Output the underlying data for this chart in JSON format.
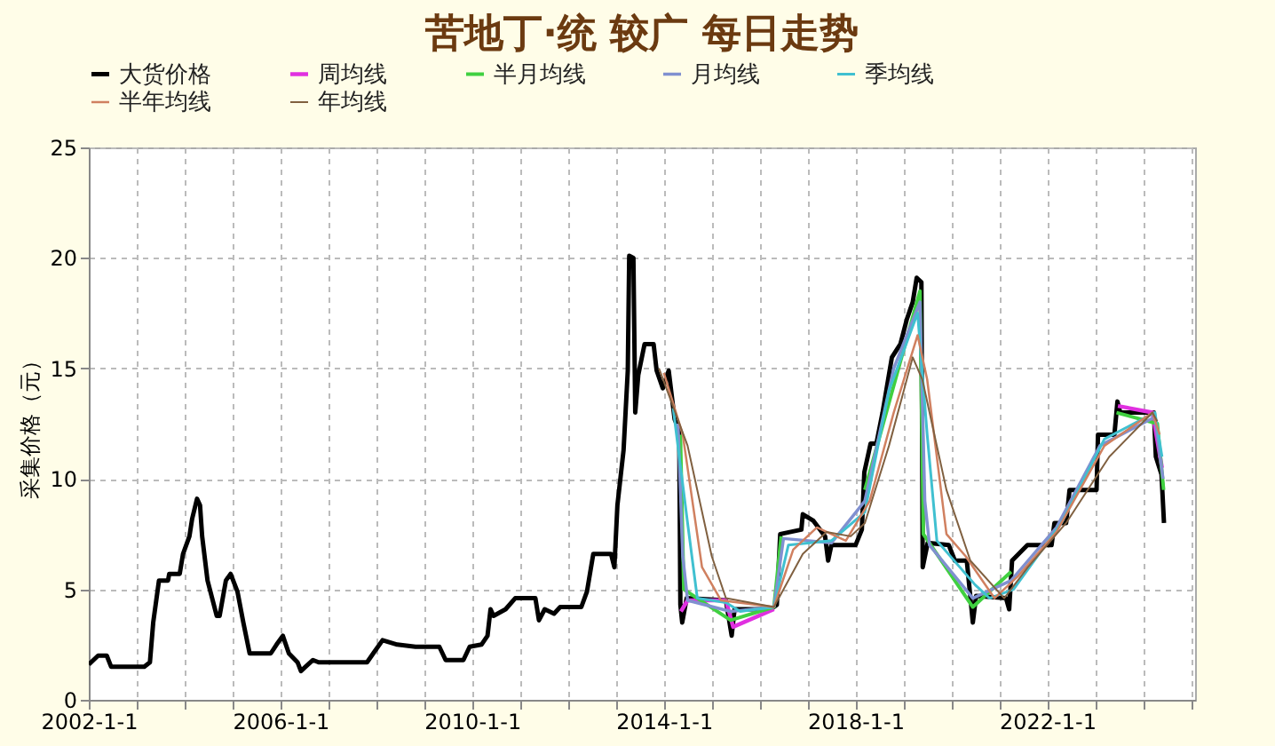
{
  "chart_data": {
    "type": "line",
    "title": "苦地丁·统 较广 每日走势",
    "ylabel": "采集价格（元）",
    "xlim": [
      "2002-01-01",
      "2025-02-01"
    ],
    "ylim": [
      0,
      25
    ],
    "yticks": [
      0,
      5,
      10,
      15,
      20,
      25
    ],
    "xticks": [
      {
        "value": "2002-01-01",
        "label": "2002-1-1"
      },
      {
        "value": "2003-01-01",
        "label": null
      },
      {
        "value": "2004-01-01",
        "label": null
      },
      {
        "value": "2005-01-01",
        "label": null
      },
      {
        "value": "2006-01-01",
        "label": "2006-1-1"
      },
      {
        "value": "2007-01-01",
        "label": null
      },
      {
        "value": "2008-01-01",
        "label": null
      },
      {
        "value": "2009-01-01",
        "label": null
      },
      {
        "value": "2010-01-01",
        "label": "2010-1-1"
      },
      {
        "value": "2011-01-01",
        "label": null
      },
      {
        "value": "2012-01-01",
        "label": null
      },
      {
        "value": "2013-01-01",
        "label": null
      },
      {
        "value": "2014-01-01",
        "label": "2014-1-1"
      },
      {
        "value": "2015-01-01",
        "label": null
      },
      {
        "value": "2016-01-01",
        "label": null
      },
      {
        "value": "2017-01-01",
        "label": null
      },
      {
        "value": "2018-01-01",
        "label": "2018-1-1"
      },
      {
        "value": "2019-01-01",
        "label": null
      },
      {
        "value": "2020-01-01",
        "label": null
      },
      {
        "value": "2021-01-01",
        "label": null
      },
      {
        "value": "2022-01-01",
        "label": "2022-1-1"
      },
      {
        "value": "2023-01-01",
        "label": null
      },
      {
        "value": "2024-01-01",
        "label": null
      },
      {
        "value": "2025-01-01",
        "label": null
      }
    ],
    "grid": true,
    "legend": "top",
    "line_style": "solid",
    "marker": "none",
    "series": [
      {
        "name": "大货价格",
        "color": "#000000",
        "x": [
          "2002-01-01",
          "2002-03-13",
          "2002-05-18",
          "2002-06-20",
          "2003-02-28",
          "2003-04-12",
          "2003-05-07",
          "2003-06-20",
          "2003-08-28",
          "2003-09-06",
          "2003-11-25",
          "2003-12-20",
          "2004-02-07",
          "2004-02-28",
          "2004-04-05",
          "2004-04-28",
          "2004-05-14",
          "2004-06-24",
          "2004-09-02",
          "2004-09-24",
          "2004-11-11",
          "2004-12-17",
          "2005-02-07",
          "2005-03-24",
          "2005-05-11",
          "2005-10-19",
          "2005-12-02",
          "2006-01-19",
          "2006-03-06",
          "2006-05-11",
          "2006-06-06",
          "2006-07-12",
          "2006-09-06",
          "2006-10-19",
          "2007-10-23",
          "2007-12-09",
          "2008-02-18",
          "2008-06-09",
          "2008-10-26",
          "2009-04-26",
          "2009-06-13",
          "2009-10-26",
          "2009-12-13",
          "2010-03-13",
          "2010-04-28",
          "2010-05-21",
          "2010-06-13",
          "2010-09-13",
          "2010-11-25",
          "2011-04-28",
          "2011-05-25",
          "2011-07-08",
          "2011-09-17",
          "2011-11-03",
          "2012-04-12",
          "2012-05-25",
          "2012-07-12",
          "2012-11-25",
          "2012-12-20",
          "2013-01-12",
          "2013-02-28",
          "2013-04-01",
          "2013-04-12",
          "2013-05-14",
          "2013-05-28",
          "2013-06-20",
          "2013-08-07",
          "2013-10-15",
          "2013-11-07",
          "2013-12-24",
          "2014-02-07",
          "2014-03-24",
          "2014-04-28",
          "2014-05-07",
          "2014-05-21",
          "2014-06-24",
          "2015-04-19",
          "2015-06-02",
          "2015-06-24",
          "2016-03-27",
          "2016-05-11",
          "2016-06-06",
          "2016-11-14",
          "2016-11-25",
          "2017-02-14",
          "2017-05-14",
          "2017-06-06",
          "2017-07-01",
          "2018-01-01",
          "2018-02-18",
          "2018-03-09",
          "2018-04-26",
          "2018-06-09",
          "2018-07-26",
          "2018-10-05",
          "2018-12-09",
          "2019-01-26",
          "2019-03-13",
          "2019-04-12",
          "2019-05-18",
          "2019-05-28",
          "2019-07-05",
          "2019-12-13",
          "2020-01-28",
          "2020-04-28",
          "2020-05-21",
          "2020-06-13",
          "2020-07-08",
          "2021-02-21",
          "2021-03-17",
          "2021-04-08",
          "2021-08-03",
          "2022-02-03",
          "2022-02-25",
          "2022-05-25",
          "2022-06-20",
          "2023-01-12",
          "2023-01-23",
          "2023-05-28",
          "2023-06-20",
          "2023-07-12",
          "2024-03-24",
          "2024-04-08",
          "2024-05-21",
          "2024-06-09"
        ],
        "values": [
          1.6,
          2.0,
          2.0,
          1.5,
          1.5,
          1.7,
          3.5,
          5.4,
          5.4,
          5.7,
          5.7,
          6.6,
          7.4,
          8.2,
          9.1,
          8.8,
          7.4,
          5.4,
          3.8,
          3.8,
          5.4,
          5.7,
          4.9,
          3.5,
          2.1,
          2.1,
          2.5,
          2.9,
          2.1,
          1.7,
          1.3,
          1.5,
          1.8,
          1.7,
          1.7,
          2.1,
          2.7,
          2.5,
          2.4,
          2.4,
          1.8,
          1.8,
          2.4,
          2.5,
          2.9,
          4.1,
          3.8,
          4.1,
          4.6,
          4.6,
          3.6,
          4.1,
          3.9,
          4.2,
          4.2,
          4.9,
          6.6,
          6.6,
          6.0,
          8.8,
          11.3,
          14.9,
          20.1,
          20.0,
          13.0,
          14.7,
          16.1,
          16.1,
          14.9,
          14.1,
          14.9,
          12.7,
          12.2,
          4.3,
          3.5,
          4.6,
          4.5,
          2.9,
          4.1,
          4.1,
          4.3,
          7.5,
          7.7,
          8.4,
          8.1,
          7.4,
          6.3,
          7.0,
          7.0,
          7.7,
          10.3,
          11.6,
          11.6,
          13.0,
          15.5,
          16.1,
          17.2,
          18.0,
          19.1,
          18.9,
          6.0,
          7.1,
          7.0,
          6.3,
          6.3,
          4.9,
          3.5,
          4.7,
          4.6,
          4.1,
          6.3,
          7.0,
          7.0,
          8.0,
          8.0,
          9.5,
          9.5,
          12.0,
          12.0,
          13.5,
          13.0,
          13.0,
          11.0,
          10.2,
          8.0
        ]
      },
      {
        "name": "周均线",
        "color": "#e030e0",
        "x": [
          "2014-05-11",
          "2014-07-01",
          "2015-04-19",
          "2015-06-13",
          "2016-04-19",
          "2019-01-01",
          "2023-06-24",
          "2024-03-13",
          "2024-05-25"
        ],
        "values": [
          4.0,
          4.5,
          4.5,
          3.3,
          4.1,
          null,
          13.3,
          13.0,
          10.5
        ]
      },
      {
        "name": "半月均线",
        "color": "#40d040",
        "x": [
          "2014-05-07",
          "2014-06-02",
          "2015-05-25",
          "2016-04-19",
          "2016-06-13",
          "2017-06-01",
          "2018-03-13",
          "2019-05-07",
          "2019-06-02",
          "2020-06-13",
          "2021-04-01",
          "2022-06-01",
          "2023-06-13",
          "2024-04-19",
          "2024-06-06"
        ],
        "values": [
          12.0,
          5.0,
          3.6,
          4.2,
          7.4,
          null,
          9.5,
          18.5,
          7.5,
          4.2,
          5.8,
          null,
          13.0,
          12.5,
          9.5
        ]
      },
      {
        "name": "月均线",
        "color": "#8090d0",
        "x": [
          "2014-04-19",
          "2014-05-25",
          "2014-07-01",
          "2015-05-25",
          "2016-04-19",
          "2016-07-01",
          "2017-07-01",
          "2018-03-13",
          "2018-10-19",
          "2019-05-07",
          "2019-06-13",
          "2019-07-19",
          "2020-06-13",
          "2021-04-01",
          "2022-03-13",
          "2023-02-07",
          "2024-04-01",
          "2024-06-02"
        ],
        "values": [
          12.5,
          6.5,
          4.5,
          4.0,
          4.2,
          7.3,
          7.1,
          9.0,
          15.0,
          18.0,
          9.0,
          7.0,
          4.6,
          5.4,
          7.8,
          11.5,
          12.8,
          10.0
        ]
      },
      {
        "name": "季均线",
        "color": "#40c0d0",
        "x": [
          "2014-03-13",
          "2014-07-01",
          "2014-09-13",
          "2015-04-19",
          "2015-08-07",
          "2016-04-19",
          "2016-08-07",
          "2017-07-01",
          "2018-03-13",
          "2018-09-13",
          "2019-04-19",
          "2019-07-01",
          "2019-09-13",
          "2020-07-01",
          "2020-10-19",
          "2021-04-19",
          "2022-04-19",
          "2023-03-13",
          "2024-04-01",
          "2024-05-25"
        ],
        "values": [
          13.2,
          8.0,
          4.6,
          4.4,
          4.0,
          4.2,
          7.0,
          7.2,
          8.5,
          14.0,
          17.5,
          12.0,
          7.2,
          5.2,
          4.6,
          5.0,
          8.0,
          11.8,
          13.0,
          11.0
        ]
      },
      {
        "name": "半年均线",
        "color": "#d08060",
        "x": [
          "2014-01-01",
          "2014-05-25",
          "2014-10-19",
          "2015-03-13",
          "2016-04-19",
          "2016-09-13",
          "2017-03-13",
          "2017-10-19",
          "2018-04-19",
          "2018-10-19",
          "2019-04-19",
          "2019-07-01",
          "2019-11-25",
          "2020-04-19",
          "2020-11-25",
          "2021-05-25",
          "2022-03-13",
          "2023-03-13",
          "2024-03-13",
          "2024-05-07"
        ],
        "values": [
          14.8,
          12.0,
          6.0,
          4.5,
          4.2,
          6.8,
          7.8,
          7.2,
          9.0,
          13.0,
          16.5,
          14.5,
          7.5,
          6.5,
          4.6,
          5.6,
          7.6,
          11.5,
          13.0,
          12.0
        ]
      },
      {
        "name": "年均线",
        "color": "#806040",
        "x": [
          "2013-11-25",
          "2014-07-01",
          "2015-01-01",
          "2015-04-19",
          "2016-04-19",
          "2016-11-25",
          "2017-05-25",
          "2017-11-25",
          "2018-03-13",
          "2018-09-13",
          "2019-03-13",
          "2019-05-25",
          "2019-11-25",
          "2020-05-25",
          "2021-02-07",
          "2021-08-07",
          "2022-05-25",
          "2023-04-19",
          "2024-03-13",
          "2024-04-19"
        ],
        "values": [
          15.0,
          11.5,
          6.5,
          4.6,
          4.2,
          6.6,
          7.6,
          7.4,
          8.0,
          11.5,
          15.5,
          14.5,
          9.5,
          6.3,
          4.6,
          6.0,
          8.0,
          11.0,
          13.0,
          12.6
        ]
      }
    ]
  }
}
